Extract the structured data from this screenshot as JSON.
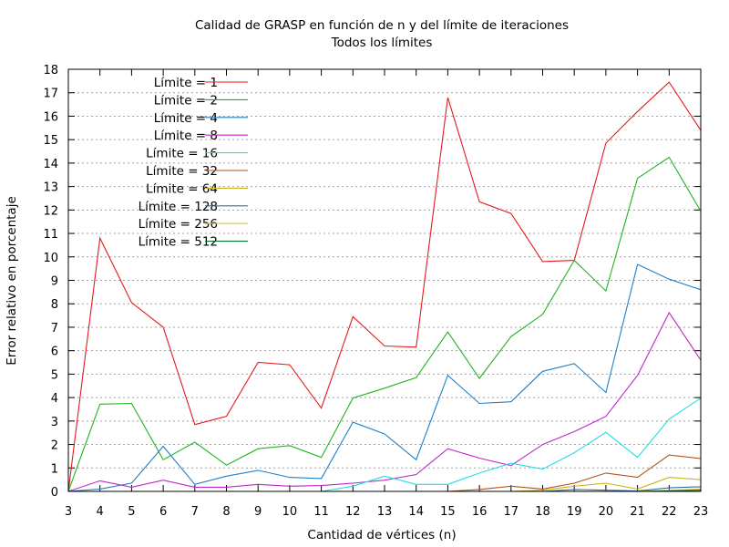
{
  "chart_data": {
    "type": "line",
    "title": "Calidad de GRASP en función de n y del límite de iteraciones",
    "subtitle": "Todos los límites",
    "xlabel": "Cantidad de vértices (n)",
    "ylabel": "Error relativo en porcentaje",
    "xlim": [
      3,
      23
    ],
    "ylim": [
      0,
      18
    ],
    "grid": true,
    "legend_position": "top-left",
    "x": [
      3,
      4,
      5,
      6,
      7,
      8,
      9,
      10,
      11,
      12,
      13,
      14,
      15,
      16,
      17,
      18,
      19,
      20,
      21,
      22,
      23
    ],
    "series": [
      {
        "name": "Límite = 1",
        "color": "#e41a1c",
        "values": [
          0,
          10.8,
          8.05,
          7.0,
          2.85,
          3.2,
          5.5,
          5.4,
          3.55,
          7.45,
          6.2,
          6.15,
          16.8,
          12.35,
          11.85,
          9.8,
          9.85,
          14.85,
          16.2,
          17.45,
          15.4
        ]
      },
      {
        "name": "Límite = 2",
        "color": "#1fb31f",
        "values": [
          0,
          3.72,
          3.75,
          1.35,
          2.1,
          1.12,
          1.82,
          1.95,
          1.45,
          3.98,
          4.4,
          4.85,
          6.8,
          4.82,
          6.6,
          7.55,
          9.85,
          8.55,
          13.35,
          14.25,
          11.95
        ]
      },
      {
        "name": "Límite = 4",
        "color": "#1e7fc8",
        "values": [
          0,
          0.1,
          0.35,
          1.92,
          0.3,
          0.65,
          0.9,
          0.6,
          0.55,
          2.95,
          2.45,
          1.35,
          4.95,
          3.75,
          3.82,
          5.12,
          5.45,
          4.22,
          9.68,
          9.05,
          8.6
        ]
      },
      {
        "name": "Límite = 8",
        "color": "#bf28c8",
        "values": [
          0,
          0.45,
          0.18,
          0.48,
          0.18,
          0.18,
          0.3,
          0.22,
          0.25,
          0.35,
          0.48,
          0.72,
          1.82,
          1.42,
          1.1,
          2.0,
          2.55,
          3.2,
          4.95,
          7.62,
          5.6
        ]
      },
      {
        "name": "Límite = 16",
        "color": "#22dde0",
        "values": [
          0,
          0,
          0,
          0,
          0,
          0,
          0,
          0,
          0,
          0.22,
          0.65,
          0.3,
          0.3,
          0.78,
          1.2,
          0.95,
          1.65,
          2.52,
          1.45,
          3.08,
          3.98
        ]
      },
      {
        "name": "Límite = 32",
        "color": "#b5521c",
        "values": [
          0,
          0,
          0,
          0,
          0,
          0,
          0,
          0,
          0,
          0,
          0,
          0,
          0,
          0.08,
          0.22,
          0.1,
          0.35,
          0.78,
          0.6,
          1.55,
          1.4
        ]
      },
      {
        "name": "Límite = 64",
        "color": "#c9b51a",
        "values": [
          0,
          0,
          0,
          0,
          0,
          0,
          0,
          0,
          0,
          0,
          0,
          0,
          0,
          0,
          0,
          0.05,
          0.22,
          0.35,
          0.1,
          0.6,
          0.5
        ]
      },
      {
        "name": "Límite = 128",
        "color": "#2c6fa6",
        "values": [
          0,
          0,
          0,
          0,
          0,
          0,
          0,
          0,
          0,
          0,
          0,
          0,
          0,
          0,
          0,
          0,
          0.08,
          0.05,
          0.02,
          0.15,
          0.2
        ]
      },
      {
        "name": "Límite = 256",
        "color": "#ddc822",
        "values": [
          0,
          0,
          0,
          0,
          0,
          0,
          0,
          0,
          0,
          0,
          0,
          0,
          0,
          0,
          0,
          0,
          0,
          0,
          0,
          0.05,
          0.1
        ]
      },
      {
        "name": "Límite = 512",
        "color": "#0b6b2e",
        "values": [
          0,
          0,
          0,
          0,
          0,
          0,
          0,
          0,
          0,
          0,
          0,
          0,
          0,
          0,
          0,
          0,
          0,
          0,
          0,
          0.02,
          0.05
        ]
      }
    ]
  }
}
